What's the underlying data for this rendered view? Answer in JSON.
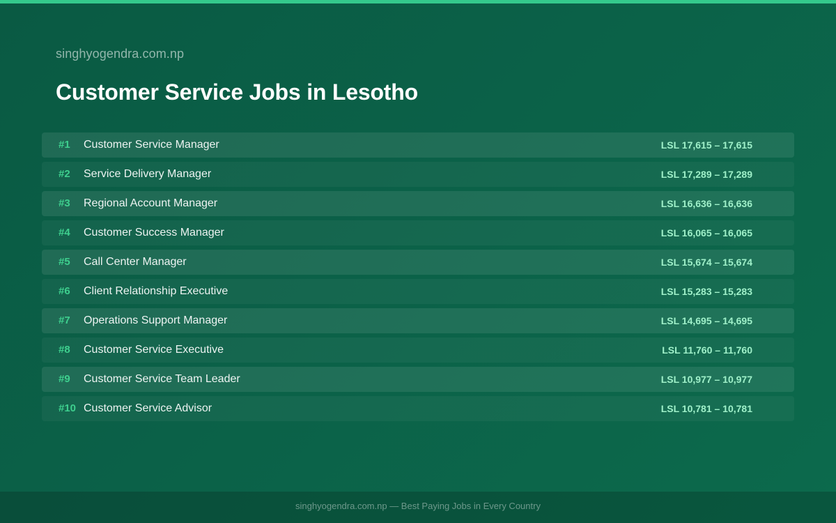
{
  "header": {
    "site_name": "singhyogendra.com.np",
    "title": "Customer Service Jobs in Lesotho"
  },
  "jobs": [
    {
      "rank": "#1",
      "title": "Customer Service Manager",
      "salary": "LSL 17,615 – 17,615"
    },
    {
      "rank": "#2",
      "title": "Service Delivery Manager",
      "salary": "LSL 17,289 – 17,289"
    },
    {
      "rank": "#3",
      "title": "Regional Account Manager",
      "salary": "LSL 16,636 – 16,636"
    },
    {
      "rank": "#4",
      "title": "Customer Success Manager",
      "salary": "LSL 16,065 – 16,065"
    },
    {
      "rank": "#5",
      "title": "Call Center Manager",
      "salary": "LSL 15,674 – 15,674"
    },
    {
      "rank": "#6",
      "title": "Client Relationship Executive",
      "salary": "LSL 15,283 – 15,283"
    },
    {
      "rank": "#7",
      "title": "Operations Support Manager",
      "salary": "LSL 14,695 – 14,695"
    },
    {
      "rank": "#8",
      "title": "Customer Service Executive",
      "salary": "LSL 11,760 – 11,760"
    },
    {
      "rank": "#9",
      "title": "Customer Service Team Leader",
      "salary": "LSL 10,977 – 10,977"
    },
    {
      "rank": "#10",
      "title": "Customer Service Advisor",
      "salary": "LSL 10,781 – 10,781"
    }
  ],
  "footer": {
    "text": "singhyogendra.com.np — Best Paying Jobs in Every Country"
  },
  "colors": {
    "background": "#0b6148",
    "accent": "#34c98c",
    "rank": "#3ecf8e",
    "salary": "#9ff0c9"
  }
}
